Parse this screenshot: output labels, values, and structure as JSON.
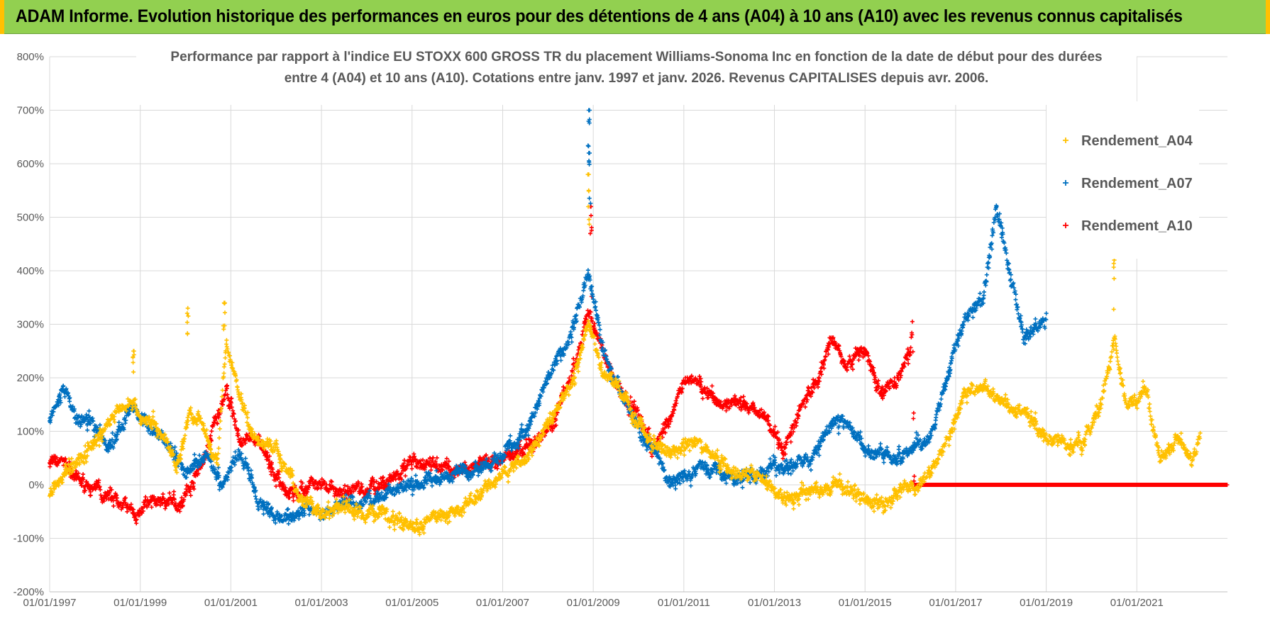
{
  "header": {
    "banner_title": "ADAM Informe. Evolution historique des performances en euros pour des détentions de 4 ans (A04) à 10 ans (A10) avec les revenus connus capitalisés"
  },
  "chart_data": {
    "type": "scatter",
    "title_line1": "Performance par rapport à l'indice EU STOXX 600 GROSS TR  du placement Williams-Sonoma Inc en fonction de la date de début pour des durées",
    "title_line2": "entre 4 (A04) et 10 ans (A10).  Cotations entre janv. 1997 et janv. 2026. Revenus CAPITALISES depuis avr. 2006.",
    "xlabel": "",
    "ylabel": "",
    "x_range": [
      1997.0,
      2023.0
    ],
    "ylim": [
      -200,
      800
    ],
    "y_ticks": [
      -200,
      -100,
      0,
      100,
      200,
      300,
      400,
      500,
      600,
      700,
      800
    ],
    "y_tick_labels": [
      "-200%",
      "-100%",
      "0%",
      "100%",
      "200%",
      "300%",
      "400%",
      "500%",
      "600%",
      "700%",
      "800%"
    ],
    "x_ticks": [
      1997,
      1999,
      2001,
      2003,
      2005,
      2007,
      2009,
      2011,
      2013,
      2015,
      2017,
      2019,
      2021
    ],
    "x_tick_labels": [
      "01/01/1997",
      "01/01/1999",
      "01/01/2001",
      "01/01/2003",
      "01/01/2005",
      "01/01/2007",
      "01/01/2009",
      "01/01/2011",
      "01/01/2013",
      "01/01/2015",
      "01/01/2017",
      "01/01/2019",
      "01/01/2021"
    ],
    "grid": true,
    "legend_position": "top-right",
    "series": [
      {
        "name": "Rendement_A04",
        "color": "#ffc000",
        "x_end": 2022.4,
        "keypoints": [
          [
            1997.0,
            -15
          ],
          [
            1997.5,
            30
          ],
          [
            1998.0,
            80
          ],
          [
            1998.5,
            140
          ],
          [
            1998.8,
            160
          ],
          [
            1999.0,
            120
          ],
          [
            1999.4,
            110
          ],
          [
            1999.8,
            40
          ],
          [
            2000.1,
            140
          ],
          [
            2000.4,
            110
          ],
          [
            2000.7,
            40
          ],
          [
            2000.9,
            270
          ],
          [
            2001.1,
            200
          ],
          [
            2001.5,
            80
          ],
          [
            2002.0,
            70
          ],
          [
            2002.5,
            -20
          ],
          [
            2003.0,
            -50
          ],
          [
            2003.5,
            -45
          ],
          [
            2004.0,
            -55
          ],
          [
            2004.5,
            -60
          ],
          [
            2005.0,
            -75
          ],
          [
            2005.5,
            -60
          ],
          [
            2006.0,
            -50
          ],
          [
            2006.5,
            -20
          ],
          [
            2007.0,
            20
          ],
          [
            2007.5,
            50
          ],
          [
            2008.0,
            110
          ],
          [
            2008.5,
            180
          ],
          [
            2008.9,
            300
          ],
          [
            2009.2,
            220
          ],
          [
            2009.6,
            170
          ],
          [
            2010.0,
            120
          ],
          [
            2010.3,
            70
          ],
          [
            2010.8,
            60
          ],
          [
            2011.3,
            80
          ],
          [
            2011.8,
            40
          ],
          [
            2012.3,
            20
          ],
          [
            2012.8,
            10
          ],
          [
            2013.3,
            -30
          ],
          [
            2013.8,
            -10
          ],
          [
            2014.3,
            -5
          ],
          [
            2014.8,
            -15
          ],
          [
            2015.2,
            -30
          ],
          [
            2015.6,
            -20
          ],
          [
            2016.0,
            0
          ],
          [
            2016.4,
            10
          ],
          [
            2016.8,
            80
          ],
          [
            2017.2,
            170
          ],
          [
            2017.6,
            180
          ],
          [
            2018.0,
            160
          ],
          [
            2018.5,
            140
          ],
          [
            2019.0,
            90
          ],
          [
            2019.5,
            80
          ],
          [
            2019.8,
            70
          ],
          [
            2020.2,
            150
          ],
          [
            2020.5,
            270
          ],
          [
            2020.8,
            140
          ],
          [
            2021.0,
            160
          ],
          [
            2021.2,
            180
          ],
          [
            2021.5,
            50
          ],
          [
            2021.9,
            80
          ],
          [
            2022.2,
            50
          ],
          [
            2022.4,
            90
          ]
        ],
        "spikes": [
          [
            1998.85,
            250
          ],
          [
            2000.05,
            330
          ],
          [
            2000.85,
            340
          ],
          [
            2008.9,
            580
          ],
          [
            2020.5,
            420
          ]
        ]
      },
      {
        "name": "Rendement_A07",
        "color": "#0070c0",
        "x_end": 2019.0,
        "keypoints": [
          [
            1997.0,
            120
          ],
          [
            1997.3,
            180
          ],
          [
            1997.6,
            130
          ],
          [
            1998.0,
            110
          ],
          [
            1998.4,
            70
          ],
          [
            1998.8,
            150
          ],
          [
            1999.2,
            100
          ],
          [
            1999.6,
            80
          ],
          [
            2000.0,
            20
          ],
          [
            2000.5,
            60
          ],
          [
            2000.8,
            0
          ],
          [
            2001.2,
            60
          ],
          [
            2001.6,
            -30
          ],
          [
            2002.0,
            -60
          ],
          [
            2002.5,
            -50
          ],
          [
            2003.0,
            -50
          ],
          [
            2003.5,
            -30
          ],
          [
            2004.0,
            -25
          ],
          [
            2004.5,
            -15
          ],
          [
            2005.0,
            -5
          ],
          [
            2005.5,
            10
          ],
          [
            2006.0,
            20
          ],
          [
            2006.5,
            40
          ],
          [
            2007.0,
            60
          ],
          [
            2007.5,
            100
          ],
          [
            2008.0,
            200
          ],
          [
            2008.5,
            280
          ],
          [
            2008.9,
            400
          ],
          [
            2009.2,
            250
          ],
          [
            2009.6,
            170
          ],
          [
            2010.0,
            100
          ],
          [
            2010.3,
            60
          ],
          [
            2010.6,
            20
          ],
          [
            2011.0,
            10
          ],
          [
            2011.4,
            40
          ],
          [
            2011.8,
            20
          ],
          [
            2012.3,
            10
          ],
          [
            2012.8,
            20
          ],
          [
            2013.3,
            30
          ],
          [
            2013.8,
            50
          ],
          [
            2014.3,
            120
          ],
          [
            2014.8,
            90
          ],
          [
            2015.2,
            60
          ],
          [
            2015.6,
            50
          ],
          [
            2016.0,
            60
          ],
          [
            2016.4,
            80
          ],
          [
            2016.8,
            200
          ],
          [
            2017.2,
            320
          ],
          [
            2017.6,
            350
          ],
          [
            2017.9,
            520
          ],
          [
            2018.2,
            400
          ],
          [
            2018.5,
            280
          ],
          [
            2018.8,
            300
          ],
          [
            2019.0,
            310
          ]
        ],
        "spikes": [
          [
            2008.9,
            700
          ],
          [
            2008.92,
            620
          ]
        ]
      },
      {
        "name": "Rendement_A10",
        "color": "#ff0000",
        "x_end": 2023.0,
        "keypoints": [
          [
            1997.0,
            40
          ],
          [
            1997.3,
            50
          ],
          [
            1997.6,
            10
          ],
          [
            1998.0,
            -10
          ],
          [
            1998.5,
            -30
          ],
          [
            1998.9,
            -55
          ],
          [
            1999.3,
            -30
          ],
          [
            1999.8,
            -40
          ],
          [
            2000.2,
            10
          ],
          [
            2000.5,
            80
          ],
          [
            2000.9,
            180
          ],
          [
            2001.2,
            80
          ],
          [
            2001.6,
            80
          ],
          [
            2002.0,
            10
          ],
          [
            2002.5,
            -20
          ],
          [
            2003.0,
            0
          ],
          [
            2003.5,
            -10
          ],
          [
            2004.0,
            -10
          ],
          [
            2004.5,
            10
          ],
          [
            2005.0,
            50
          ],
          [
            2005.5,
            30
          ],
          [
            2006.0,
            30
          ],
          [
            2006.5,
            40
          ],
          [
            2007.0,
            50
          ],
          [
            2007.5,
            70
          ],
          [
            2008.0,
            100
          ],
          [
            2008.5,
            200
          ],
          [
            2008.9,
            320
          ],
          [
            2009.2,
            250
          ],
          [
            2009.6,
            170
          ],
          [
            2010.0,
            130
          ],
          [
            2010.3,
            70
          ],
          [
            2010.7,
            120
          ],
          [
            2011.0,
            200
          ],
          [
            2011.4,
            180
          ],
          [
            2011.8,
            160
          ],
          [
            2012.3,
            150
          ],
          [
            2012.8,
            130
          ],
          [
            2013.2,
            60
          ],
          [
            2013.6,
            150
          ],
          [
            2014.0,
            200
          ],
          [
            2014.3,
            280
          ],
          [
            2014.6,
            220
          ],
          [
            2015.0,
            250
          ],
          [
            2015.3,
            170
          ],
          [
            2015.7,
            190
          ],
          [
            2016.0,
            240
          ],
          [
            2016.05,
            300
          ],
          [
            2016.08,
            0
          ],
          [
            2023.0,
            0
          ]
        ],
        "spikes": [
          [
            2008.95,
            520
          ]
        ]
      }
    ]
  }
}
